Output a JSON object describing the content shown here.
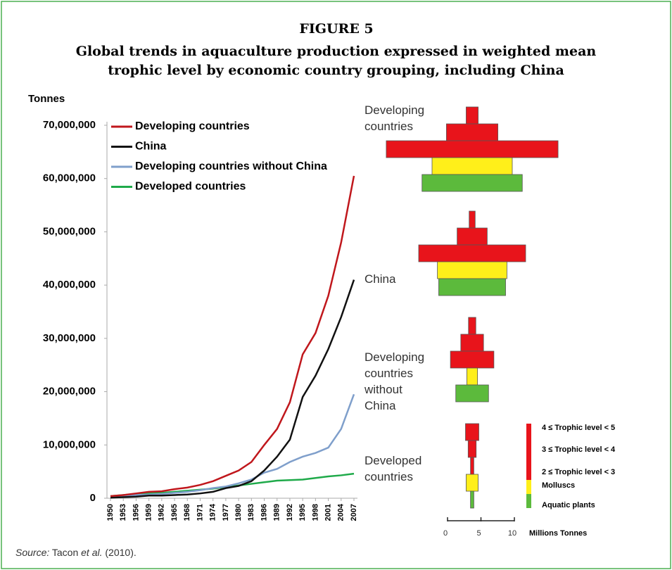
{
  "title": "FIGURE 5",
  "subtitle": "Global trends in aquaculture production expressed in weighted mean trophic level by economic country grouping, including China",
  "chart_data": {
    "type": "line",
    "y_label": "Tonnes",
    "x": [
      1950,
      1953,
      1956,
      1959,
      1962,
      1965,
      1968,
      1971,
      1974,
      1977,
      1980,
      1983,
      1986,
      1989,
      1992,
      1995,
      1998,
      2001,
      2004,
      2007
    ],
    "xlim": [
      1950,
      2007
    ],
    "xticks": [
      1950,
      1953,
      1956,
      1959,
      1962,
      1965,
      1968,
      1971,
      1974,
      1977,
      1980,
      1983,
      1986,
      1989,
      1992,
      1995,
      1998,
      2001,
      2004,
      2007
    ],
    "ylim": [
      0,
      70000000
    ],
    "yticks": [
      0,
      {
        "value": 10000000,
        "label": "10,000,000"
      },
      {
        "value": 20000000,
        "label": "20,000,000"
      },
      {
        "value": 30000000,
        "label": "30,000,000"
      },
      {
        "value": 40000000,
        "label": "40,000,000"
      },
      {
        "value": 50000000,
        "label": "50,000,000"
      },
      {
        "value": 60000000,
        "label": "60,000,000"
      },
      {
        "value": 70000000,
        "label": "70,000,000"
      }
    ],
    "series": [
      {
        "name": "Developing countries",
        "color": "#c0171c",
        "values": [
          400000,
          600000,
          900000,
          1200000,
          1300000,
          1700000,
          2000000,
          2500000,
          3200000,
          4200000,
          5200000,
          6800000,
          10000000,
          13000000,
          18000000,
          27000000,
          31000000,
          38000000,
          48000000,
          60500000
        ]
      },
      {
        "name": "China",
        "color": "#111111",
        "values": [
          100000,
          200000,
          300000,
          500000,
          500000,
          600000,
          700000,
          900000,
          1200000,
          1900000,
          2300000,
          3200000,
          5200000,
          7800000,
          11000000,
          19000000,
          23000000,
          28000000,
          34000000,
          41000000
        ]
      },
      {
        "name": "Developing countries without China",
        "color": "#7f9fcb",
        "values": [
          300000,
          400000,
          600000,
          700000,
          800000,
          1000000,
          1200000,
          1500000,
          1900000,
          2200000,
          2800000,
          3500000,
          4800000,
          5500000,
          6800000,
          7800000,
          8500000,
          9500000,
          13000000,
          19500000
        ]
      },
      {
        "name": "Developed countries",
        "color": "#1faa4a",
        "values": [
          400000,
          600000,
          800000,
          900000,
          1000000,
          1200000,
          1400000,
          1600000,
          1800000,
          2100000,
          2400000,
          2700000,
          3000000,
          3300000,
          3400000,
          3500000,
          3800000,
          4100000,
          4300000,
          4600000
        ]
      }
    ]
  },
  "pyramids": {
    "levels": [
      {
        "name": "4 ≤ Trophic level < 5",
        "color": "#e8141b"
      },
      {
        "name": "3 ≤ Trophic level < 4",
        "color": "#e8141b"
      },
      {
        "name": "2 ≤ Trophic level < 3",
        "color": "#e8141b"
      },
      {
        "name": "Molluscs",
        "color": "#ffef1a"
      },
      {
        "name": "Aquatic plants",
        "color": "#5cba3c"
      }
    ],
    "groups": [
      {
        "name": "Developing countries",
        "values": [
          1.8,
          7.7,
          25.7,
          12,
          15
        ]
      },
      {
        "name": "China",
        "values": [
          0.9,
          4.5,
          16,
          10.4,
          10
        ]
      },
      {
        "name": "Developing countries without China",
        "values": [
          1.1,
          3.4,
          6.5,
          1.6,
          4.9
        ]
      },
      {
        "name": "Developed countries",
        "values": [
          2,
          1.2,
          0.5,
          1.8,
          0.5
        ]
      }
    ],
    "scale_ticks": [
      0,
      5,
      10
    ],
    "scale_label": "Millions Tonnes"
  },
  "source": {
    "prefix": "Source:",
    "author": "Tacon",
    "etal": "et al.",
    "year": "(2010)."
  }
}
